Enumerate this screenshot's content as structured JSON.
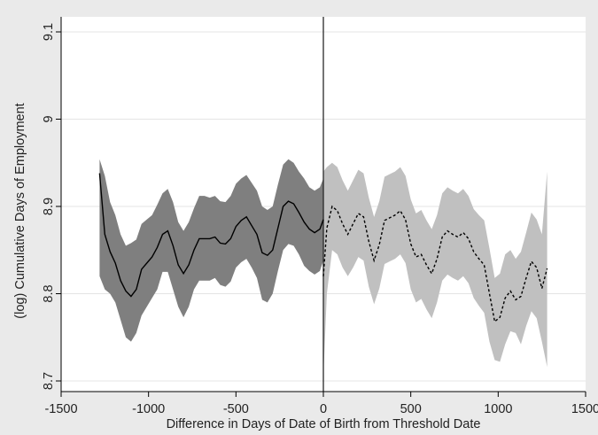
{
  "chart_data": {
    "type": "line",
    "title": "",
    "xlabel": "Difference in Days of Date of Birth from Threshold Date",
    "ylabel": "(log) Cumulative Days of Employment",
    "xlim": [
      -1500,
      1500
    ],
    "ylim": [
      8.7,
      9.1
    ],
    "x_ticks": [
      -1500,
      -1000,
      -500,
      0,
      500,
      1000,
      1500
    ],
    "x_tick_labels": [
      "-1500",
      "-1000",
      "-500",
      "0",
      "500",
      "1000",
      "1500"
    ],
    "y_ticks": [
      8.7,
      8.8,
      8.9,
      9,
      9.1
    ],
    "y_tick_labels": [
      "8.7",
      "8.8",
      "8.9",
      "9",
      "9.1"
    ],
    "grid": "horizontal",
    "threshold_x": 0,
    "colors": {
      "background": "#eaeaea",
      "plot_bg": "#ffffff",
      "left_band": "#7f7f7f",
      "right_band": "#c0c0c0",
      "line": "#000000",
      "grid": "#e4e4e4"
    },
    "series": [
      {
        "side": "left",
        "style": "solid",
        "x": [
          -1280,
          -1250,
          -1220,
          -1190,
          -1160,
          -1130,
          -1100,
          -1070,
          -1040,
          -1010,
          -980,
          -950,
          -920,
          -890,
          -860,
          -830,
          -800,
          -770,
          -740,
          -710,
          -680,
          -650,
          -620,
          -590,
          -560,
          -530,
          -500,
          -470,
          -440,
          -410,
          -380,
          -350,
          -320,
          -290,
          -260,
          -230,
          -200,
          -170,
          -140,
          -110,
          -80,
          -50,
          -20,
          0
        ],
        "y": [
          8.938,
          8.868,
          8.848,
          8.835,
          8.815,
          8.803,
          8.797,
          8.805,
          8.828,
          8.835,
          8.842,
          8.853,
          8.868,
          8.872,
          8.855,
          8.833,
          8.823,
          8.833,
          8.85,
          8.863,
          8.863,
          8.863,
          8.865,
          8.858,
          8.857,
          8.863,
          8.877,
          8.884,
          8.888,
          8.878,
          8.868,
          8.847,
          8.844,
          8.85,
          8.875,
          8.9,
          8.906,
          8.903,
          8.893,
          8.882,
          8.874,
          8.87,
          8.874,
          8.885
        ],
        "lower": [
          8.82,
          8.805,
          8.8,
          8.79,
          8.77,
          8.75,
          8.745,
          8.755,
          8.775,
          8.785,
          8.795,
          8.805,
          8.825,
          8.825,
          8.805,
          8.785,
          8.773,
          8.785,
          8.805,
          8.815,
          8.815,
          8.815,
          8.818,
          8.81,
          8.808,
          8.814,
          8.83,
          8.836,
          8.84,
          8.83,
          8.818,
          8.793,
          8.79,
          8.8,
          8.826,
          8.85,
          8.857,
          8.855,
          8.845,
          8.832,
          8.826,
          8.822,
          8.826,
          8.838
        ],
        "upper": [
          8.954,
          8.935,
          8.905,
          8.89,
          8.868,
          8.855,
          8.858,
          8.862,
          8.88,
          8.885,
          8.89,
          8.902,
          8.915,
          8.92,
          8.905,
          8.882,
          8.872,
          8.882,
          8.898,
          8.912,
          8.912,
          8.91,
          8.912,
          8.906,
          8.905,
          8.912,
          8.926,
          8.932,
          8.936,
          8.927,
          8.918,
          8.9,
          8.896,
          8.9,
          8.925,
          8.948,
          8.954,
          8.95,
          8.94,
          8.932,
          8.922,
          8.918,
          8.922,
          8.932
        ]
      },
      {
        "side": "right",
        "style": "dashed",
        "x": [
          0,
          20,
          50,
          80,
          110,
          140,
          170,
          200,
          230,
          260,
          290,
          320,
          350,
          380,
          410,
          440,
          470,
          500,
          530,
          560,
          590,
          620,
          650,
          680,
          710,
          740,
          770,
          800,
          830,
          860,
          890,
          920,
          950,
          980,
          1010,
          1040,
          1070,
          1100,
          1130,
          1160,
          1190,
          1220,
          1250,
          1280
        ],
        "y": [
          8.82,
          8.875,
          8.9,
          8.895,
          8.88,
          8.868,
          8.88,
          8.892,
          8.888,
          8.86,
          8.838,
          8.856,
          8.884,
          8.887,
          8.89,
          8.895,
          8.885,
          8.857,
          8.842,
          8.845,
          8.833,
          8.823,
          8.84,
          8.865,
          8.872,
          8.868,
          8.865,
          8.87,
          8.863,
          8.848,
          8.84,
          8.833,
          8.8,
          8.768,
          8.773,
          8.795,
          8.803,
          8.793,
          8.797,
          8.818,
          8.837,
          8.83,
          8.806,
          8.829
        ],
        "lower": [
          8.705,
          8.8,
          8.85,
          8.845,
          8.83,
          8.82,
          8.83,
          8.842,
          8.838,
          8.808,
          8.788,
          8.806,
          8.834,
          8.837,
          8.84,
          8.845,
          8.835,
          8.805,
          8.79,
          8.794,
          8.782,
          8.772,
          8.79,
          8.815,
          8.822,
          8.818,
          8.815,
          8.82,
          8.812,
          8.795,
          8.786,
          8.778,
          8.745,
          8.724,
          8.722,
          8.742,
          8.757,
          8.755,
          8.742,
          8.763,
          8.78,
          8.772,
          8.745,
          8.716
        ],
        "upper": [
          8.94,
          8.945,
          8.95,
          8.945,
          8.93,
          8.918,
          8.93,
          8.942,
          8.938,
          8.91,
          8.888,
          8.906,
          8.934,
          8.937,
          8.94,
          8.945,
          8.935,
          8.908,
          8.892,
          8.896,
          8.884,
          8.874,
          8.89,
          8.915,
          8.922,
          8.918,
          8.915,
          8.92,
          8.912,
          8.897,
          8.89,
          8.884,
          8.852,
          8.818,
          8.823,
          8.845,
          8.85,
          8.84,
          8.848,
          8.87,
          8.893,
          8.885,
          8.868,
          8.94
        ]
      }
    ]
  }
}
